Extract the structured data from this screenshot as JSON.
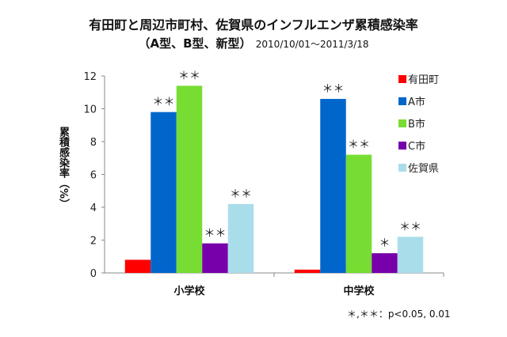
{
  "chart_data": {
    "type": "bar",
    "title": "有田町と周辺市町村、佐賀県のインフルエンザ累積感染率",
    "subtitle": "（A型、B型、新型）",
    "period": "2010/10/01～2011/3/18",
    "ylabel": "累積感染率（%）",
    "xlabel": "",
    "ylim": [
      0,
      12
    ],
    "yticks": [
      "0",
      "2",
      "4",
      "6",
      "8",
      "10",
      "12"
    ],
    "categories": [
      "小学校",
      "中学校"
    ],
    "legend_position": "right",
    "grid": false,
    "series": [
      {
        "name": "有田町",
        "color": "#ff0000",
        "values": [
          0.8,
          0.2
        ],
        "marks": [
          "",
          ""
        ]
      },
      {
        "name": "A市",
        "color": "#0066cc",
        "values": [
          9.8,
          10.6
        ],
        "marks": [
          "＊＊",
          "＊＊"
        ]
      },
      {
        "name": "B市",
        "color": "#77dd33",
        "values": [
          11.4,
          7.2
        ],
        "marks": [
          "＊＊",
          "＊＊"
        ]
      },
      {
        "name": "C市",
        "color": "#7700aa",
        "values": [
          1.8,
          1.2
        ],
        "marks": [
          "＊＊",
          "＊"
        ]
      },
      {
        "name": "佐賀県",
        "color": "#aaddea",
        "values": [
          4.2,
          2.2
        ],
        "marks": [
          "＊＊",
          "＊＊"
        ]
      }
    ],
    "footnote": "＊,＊＊：p<0.05, 0.01"
  }
}
